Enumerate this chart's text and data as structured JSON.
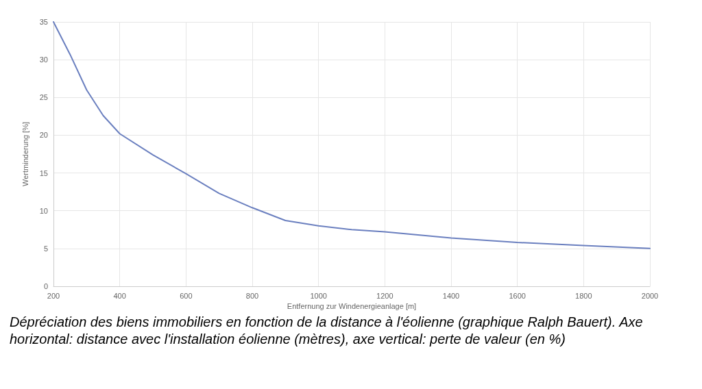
{
  "chart_data": {
    "type": "line",
    "x": [
      200,
      250,
      300,
      350,
      400,
      500,
      600,
      700,
      800,
      900,
      1000,
      1100,
      1200,
      1400,
      1600,
      1800,
      2000
    ],
    "series": [
      {
        "color": "#6a7fbf",
        "values": [
          35,
          30.7,
          26,
          22.6,
          20.2,
          17.4,
          14.9,
          12.3,
          10.4,
          8.7,
          8,
          7.5,
          7.2,
          6.4,
          5.8,
          5.4,
          5
        ]
      }
    ],
    "xlabel": "Entfernung zur Windenergieanlage [m]",
    "ylabel": "Wertminderung [%]",
    "xlim": [
      200,
      2000
    ],
    "xticks": [
      200,
      400,
      600,
      800,
      1000,
      1200,
      1400,
      1600,
      1800,
      2000
    ],
    "ylim": [
      0,
      35
    ],
    "yticks": [
      0,
      5,
      10,
      15,
      20,
      25,
      30,
      35
    ],
    "grid": true,
    "marker": "none",
    "line_style": "solid",
    "annotations": [
      "Dépréciation des biens immobiliers en fonction de la distance à l'éolienne (graphique Ralph Bauert). Axe horizontal: distance avec l'installation éolienne (mètres), axe vertical: perte de valeur (en %)"
    ]
  }
}
